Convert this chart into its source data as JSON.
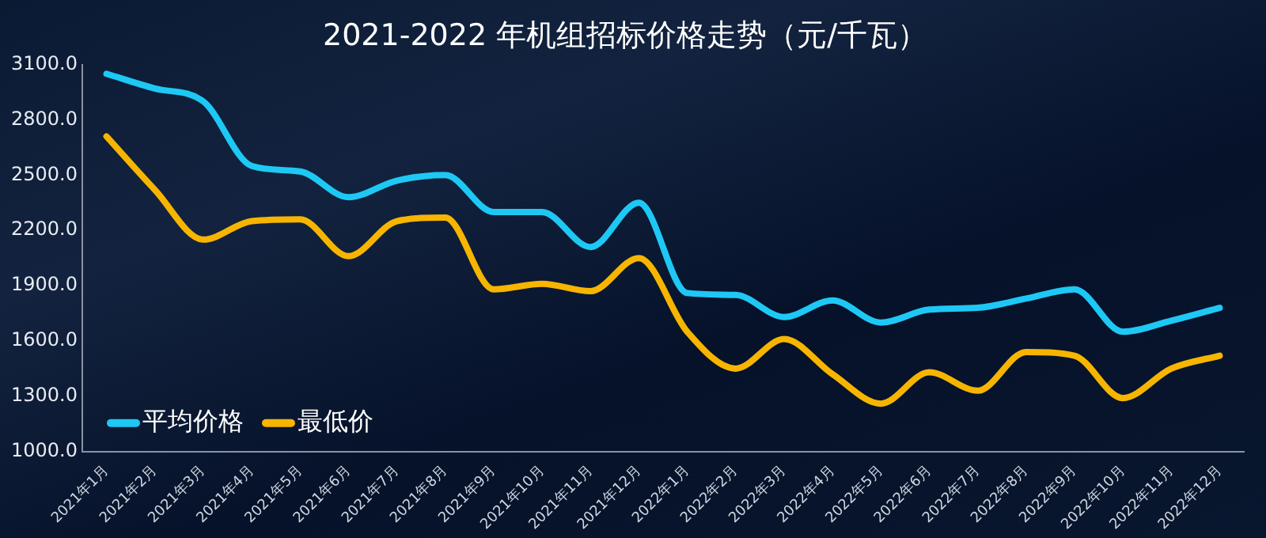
{
  "chart_data": {
    "type": "line",
    "title": "2021-2022 年机组招标价格走势（元/千瓦）",
    "categories": [
      "2021年1月",
      "2021年2月",
      "2021年3月",
      "2021年4月",
      "2021年5月",
      "2021年6月",
      "2021年7月",
      "2021年8月",
      "2021年9月",
      "2021年10月",
      "2021年11月",
      "2021年12月",
      "2022年1月",
      "2022年2月",
      "2022年3月",
      "2022年4月",
      "2022年5月",
      "2022年6月",
      "2022年7月",
      "2022年8月",
      "2022年9月",
      "2022年10月",
      "2022年11月",
      "2022年12月"
    ],
    "series": [
      {
        "name": "平均价格",
        "color": "#1ec8f5",
        "values": [
          3050,
          2970,
          2900,
          2550,
          2520,
          2380,
          2470,
          2500,
          2300,
          2300,
          2110,
          2350,
          1860,
          1850,
          1730,
          1820,
          1700,
          1770,
          1780,
          1830,
          1880,
          1650,
          1710,
          1780
        ]
      },
      {
        "name": "最低价",
        "color": "#f7b500",
        "values": [
          2710,
          2420,
          2150,
          2250,
          2260,
          2060,
          2250,
          2270,
          1880,
          1910,
          1870,
          2050,
          1650,
          1450,
          1610,
          1420,
          1260,
          1430,
          1330,
          1540,
          1520,
          1290,
          1450,
          1520
        ]
      }
    ],
    "ylim": [
      1000,
      3100
    ],
    "yticks": [
      {
        "value": 1000,
        "label": "1000.0"
      },
      {
        "value": 1300,
        "label": "1300.0"
      },
      {
        "value": 1600,
        "label": "1600.0"
      },
      {
        "value": 1900,
        "label": "1900.0"
      },
      {
        "value": 2200,
        "label": "2200.0"
      },
      {
        "value": 2500,
        "label": "2500.0"
      },
      {
        "value": 2800,
        "label": "2800.0"
      },
      {
        "value": 3100,
        "label": "3100.0"
      }
    ],
    "grid": false,
    "legend": "bottom left",
    "marker": "none",
    "line_style": "solid"
  }
}
